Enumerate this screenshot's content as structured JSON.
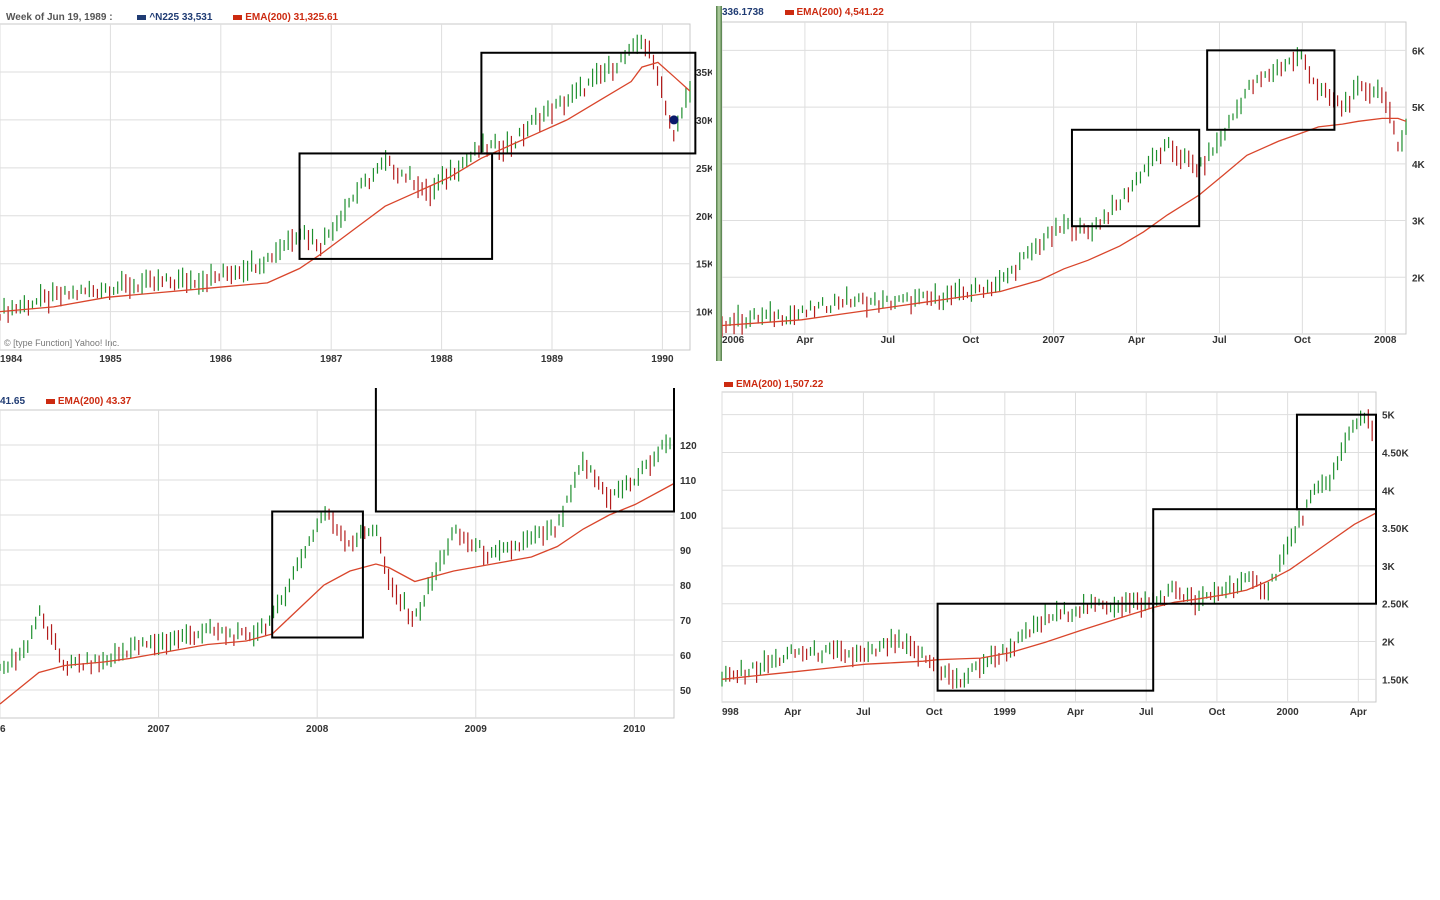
{
  "colors": {
    "grid": "#dedede",
    "axis_text": "#333333",
    "price_up": "#1e8f2e",
    "price_down": "#b31d1d",
    "ema": "#d9452b",
    "box": "#000000",
    "legend_series": "#1f3b73",
    "legend_ema": "#cc2a10"
  },
  "panels": [
    {
      "id": "p1",
      "legend": {
        "date_label": "Week of Jun 19, 1989 :",
        "series_label": "^N225",
        "series_value": "33,531",
        "ema_label": "EMA(200)",
        "ema_value": "31,325.61"
      },
      "credit": "© [type Function] Yahoo! Inc.",
      "chart_data": {
        "type": "line",
        "title": "",
        "x_ticks": [
          "1984",
          "1985",
          "1986",
          "1987",
          "1988",
          "1989",
          "1990"
        ],
        "y_ticks": [
          "10K",
          "15K",
          "20K",
          "25K",
          "30K",
          "35K"
        ],
        "ylim": [
          6000,
          40000
        ],
        "x": [
          0,
          0.5,
          1,
          1.5,
          2,
          2.5,
          2.8,
          3,
          3.3,
          3.6,
          3.9,
          4.0,
          4.2,
          4.5,
          4.8,
          5.0,
          5.3,
          5.6,
          5.9,
          6.0,
          6.15,
          6.3,
          6.45
        ],
        "series": [
          {
            "name": "^N225",
            "values": [
              10000,
              11500,
              12500,
              13000,
              13500,
              15500,
              18500,
              17000,
              22000,
              25500,
              23500,
              22000,
              24500,
              27000,
              27500,
              30000,
              32000,
              34500,
              37000,
              38500,
              35000,
              28000,
              33500
            ]
          },
          {
            "name": "EMA(200)",
            "values": [
              10000,
              10500,
              11500,
              12000,
              12500,
              13000,
              14500,
              16000,
              18500,
              21000,
              22500,
              23000,
              24000,
              26000,
              27500,
              28500,
              30000,
              32000,
              34000,
              35500,
              36000,
              34500,
              33000
            ]
          }
        ],
        "boxes": [
          {
            "x": [
              2.8,
              4.6
            ],
            "y": [
              15500,
              26500
            ]
          },
          {
            "x": [
              4.5,
              6.5
            ],
            "y": [
              26500,
              37000
            ]
          }
        ],
        "marker": {
          "x": 6.3,
          "y": 30000
        }
      }
    },
    {
      "id": "p2",
      "legend": {
        "series_value": "336.1738",
        "ema_label": "EMA(200)",
        "ema_value": "4,541.22"
      },
      "chart_data": {
        "type": "line",
        "title": "",
        "x_ticks": [
          "2006",
          "Apr",
          "Jul",
          "Oct",
          "2007",
          "Apr",
          "Jul",
          "Oct",
          "2008"
        ],
        "y_ticks": [
          "2K",
          "3K",
          "4K",
          "5K",
          "6K"
        ],
        "ylim": [
          1000,
          6500
        ],
        "x": [
          0,
          0.5,
          1,
          1.5,
          2,
          2.5,
          3,
          3.5,
          4,
          4.3,
          4.6,
          5,
          5.3,
          5.6,
          6,
          6.3,
          6.6,
          7,
          7.3,
          7.5,
          7.8,
          8,
          8.3,
          8.5,
          8.6
        ],
        "series": [
          {
            "name": "Price",
            "values": [
              1200,
              1300,
              1350,
              1600,
              1550,
              1600,
              1700,
              1900,
              2600,
              2900,
              2800,
              3300,
              3900,
              4300,
              3900,
              4500,
              5300,
              5700,
              5900,
              5300,
              5000,
              5300,
              5300,
              4300,
              4700
            ]
          },
          {
            "name": "EMA(200)",
            "values": [
              1150,
              1200,
              1250,
              1350,
              1450,
              1550,
              1650,
              1750,
              1950,
              2150,
              2300,
              2550,
              2800,
              3100,
              3450,
              3800,
              4150,
              4400,
              4550,
              4650,
              4700,
              4750,
              4800,
              4800,
              4750
            ]
          }
        ],
        "boxes": [
          {
            "x": [
              4.4,
              6.0
            ],
            "y": [
              2900,
              4600
            ]
          },
          {
            "x": [
              6.1,
              7.7
            ],
            "y": [
              4600,
              6000
            ]
          }
        ]
      }
    },
    {
      "id": "p3",
      "legend": {
        "series_value": "41.65",
        "ema_label": "EMA(200)",
        "ema_value": "43.37"
      },
      "chart_data": {
        "type": "line",
        "title": "",
        "x_ticks": [
          "6",
          "2007",
          "2008",
          "2009",
          "2010"
        ],
        "y_ticks": [
          "50",
          "60",
          "70",
          "80",
          "90",
          "100",
          "110",
          "120"
        ],
        "ylim": [
          42,
          130
        ],
        "x": [
          0,
          0.2,
          0.3,
          0.5,
          0.8,
          1,
          1.3,
          1.6,
          1.9,
          2.1,
          2.3,
          2.5,
          2.7,
          2.9,
          3.0,
          3.2,
          3.5,
          3.8,
          4.1,
          4.3,
          4.5,
          4.7,
          4.9,
          5.2
        ],
        "series": [
          {
            "name": "Price",
            "values": [
              55,
              62,
              72,
              57,
              58,
              62,
              64,
              67,
              65,
              70,
              86,
              101,
              92,
              97,
              80,
              70,
              95,
              88,
              93,
              96,
              115,
              105,
              110,
              123
            ]
          },
          {
            "name": "EMA(200)",
            "values": [
              46,
              52,
              55,
              57,
              58,
              59,
              61,
              63,
              64,
              66,
              73,
              80,
              84,
              86,
              85,
              81,
              84,
              86,
              88,
              91,
              96,
              100,
              103,
              109
            ]
          }
        ],
        "boxes": [
          {
            "x": [
              2.1,
              2.8
            ],
            "y": [
              65,
              101
            ]
          },
          {
            "x": [
              2.9,
              5.2
            ],
            "y": [
              101,
              137
            ]
          }
        ]
      }
    },
    {
      "id": "p4",
      "legend": {
        "ema_label": "EMA(200)",
        "ema_value": "1,507.22"
      },
      "chart_data": {
        "type": "line",
        "title": "",
        "x_ticks": [
          "998",
          "Apr",
          "Jul",
          "Oct",
          "1999",
          "Apr",
          "Jul",
          "Oct",
          "2000",
          "Apr"
        ],
        "y_ticks": [
          "1.50K",
          "2K",
          "2.50K",
          "3K",
          "3.50K",
          "4K",
          "4.50K",
          "5K"
        ],
        "ylim": [
          1200,
          5300
        ],
        "x": [
          0,
          0.5,
          1,
          1.5,
          2,
          2.4,
          2.8,
          3,
          3.3,
          3.6,
          4,
          4.5,
          5,
          5.5,
          6,
          6.3,
          6.6,
          7,
          7.3,
          7.6,
          7.9,
          8.2,
          8.5,
          8.8,
          9.0,
          9.1
        ],
        "series": [
          {
            "name": "Price",
            "values": [
              1500,
              1650,
              1850,
              1850,
              1800,
              2000,
              1800,
              1650,
              1450,
              1700,
              1900,
              2300,
              2450,
              2500,
              2500,
              2700,
              2500,
              2700,
              2800,
              2700,
              3300,
              3900,
              4200,
              4900,
              5000,
              4600
            ]
          },
          {
            "name": "EMA(200)",
            "values": [
              1500,
              1550,
              1600,
              1650,
              1700,
              1720,
              1740,
              1760,
              1770,
              1780,
              1850,
              1990,
              2150,
              2300,
              2450,
              2520,
              2560,
              2620,
              2680,
              2800,
              2950,
              3150,
              3350,
              3550,
              3650,
              3700
            ]
          }
        ],
        "boxes": [
          {
            "x": [
              3.0,
              6.0
            ],
            "y": [
              1350,
              2500
            ]
          },
          {
            "x": [
              6.0,
              9.1
            ],
            "y": [
              2500,
              3750
            ]
          },
          {
            "x": [
              8.0,
              9.1
            ],
            "y": [
              3750,
              5000
            ]
          }
        ]
      }
    }
  ]
}
